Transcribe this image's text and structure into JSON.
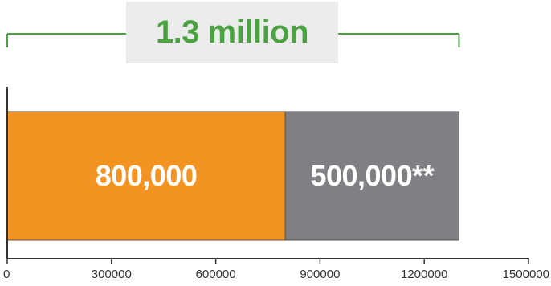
{
  "chart_data": {
    "type": "bar",
    "orientation": "horizontal",
    "stacked": true,
    "total_label": "1.3 million",
    "series": [
      {
        "values": [
          800000
        ],
        "label": "800,000",
        "color": "#f39322"
      },
      {
        "values": [
          500000
        ],
        "label": "500,000**",
        "color": "#7f8083"
      }
    ],
    "xlim": [
      0,
      1500000
    ],
    "xticks": [
      0,
      300000,
      600000,
      900000,
      1200000,
      1500000
    ],
    "xtick_labels": [
      "0",
      "300000",
      "600000",
      "900000",
      "1200000",
      "1500000"
    ],
    "grid": false
  },
  "colors": {
    "accent": "#4aa340",
    "axis": "#333333"
  }
}
